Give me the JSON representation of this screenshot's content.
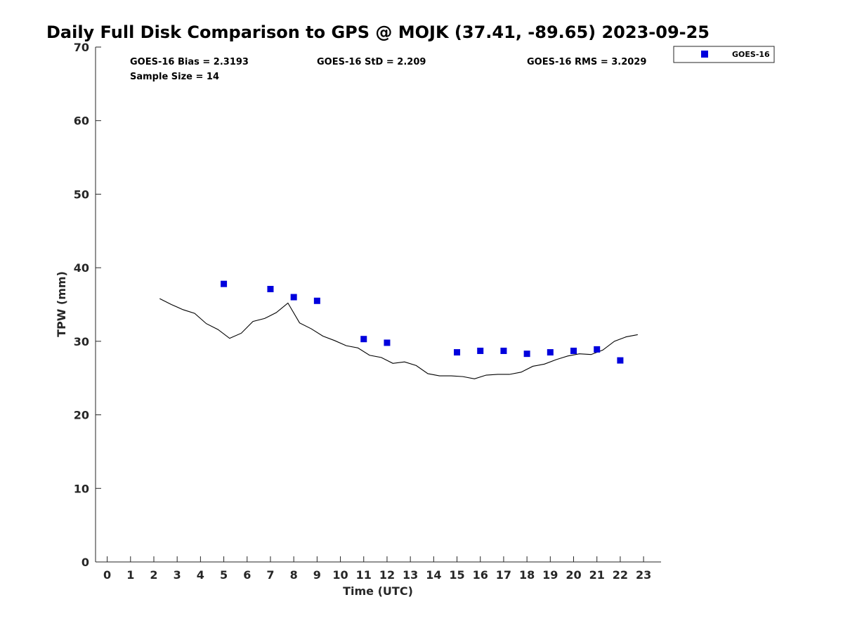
{
  "chart_data": {
    "type": "scatter",
    "title": "Daily Full Disk Comparison to GPS @ MOJK (37.41, -89.65) 2023-09-25",
    "xlabel": "Time (UTC)",
    "ylabel": "TPW (mm)",
    "xlim": [
      -0.5,
      23.75
    ],
    "ylim": [
      0,
      70
    ],
    "xticks": [
      0,
      1,
      2,
      3,
      4,
      5,
      6,
      7,
      8,
      9,
      10,
      11,
      12,
      13,
      14,
      15,
      16,
      17,
      18,
      19,
      20,
      21,
      22,
      23
    ],
    "yticks": [
      0,
      10,
      20,
      30,
      40,
      50,
      60,
      70
    ],
    "grid": false,
    "legend_position": "top-right",
    "stats": {
      "bias": "GOES-16 Bias = 2.3193",
      "std": "GOES-16 StD = 2.209",
      "rms": "GOES-16 RMS = 3.2029",
      "sample": "Sample Size = 14"
    },
    "series": [
      {
        "name": "GOES-16",
        "type": "scatter",
        "color": "#0000dd",
        "x": [
          5,
          7,
          8,
          9,
          11,
          12,
          15,
          16,
          17,
          18,
          19,
          20,
          21,
          22
        ],
        "y": [
          37.8,
          37.1,
          36.0,
          35.5,
          30.3,
          29.8,
          28.5,
          28.7,
          28.7,
          28.3,
          28.5,
          28.7,
          28.9,
          27.4
        ]
      },
      {
        "type": "line",
        "color": "#000000",
        "x": [
          2.25,
          2.75,
          3.25,
          3.75,
          4.25,
          4.75,
          5.25,
          5.75,
          6.25,
          6.75,
          7.25,
          7.75,
          8.25,
          8.75,
          9.25,
          9.75,
          10.25,
          10.75,
          11.25,
          11.75,
          12.25,
          12.75,
          13.25,
          13.75,
          14.25,
          14.75,
          15.25,
          15.75,
          16.25,
          16.75,
          17.25,
          17.75,
          18.25,
          18.75,
          19.25,
          19.75,
          20.25,
          20.75,
          21.25,
          21.75,
          22.25,
          22.75
        ],
        "y": [
          35.8,
          35.0,
          34.3,
          33.8,
          32.4,
          31.6,
          30.4,
          31.1,
          32.7,
          33.1,
          33.9,
          35.2,
          32.5,
          31.7,
          30.7,
          30.1,
          29.4,
          29.1,
          28.1,
          27.8,
          27.0,
          27.2,
          26.7,
          25.6,
          25.3,
          25.3,
          25.2,
          24.9,
          25.4,
          25.5,
          25.5,
          25.8,
          26.6,
          26.9,
          27.5,
          28.0,
          28.3,
          28.2,
          28.8,
          30.0,
          30.6,
          30.9
        ]
      }
    ]
  }
}
